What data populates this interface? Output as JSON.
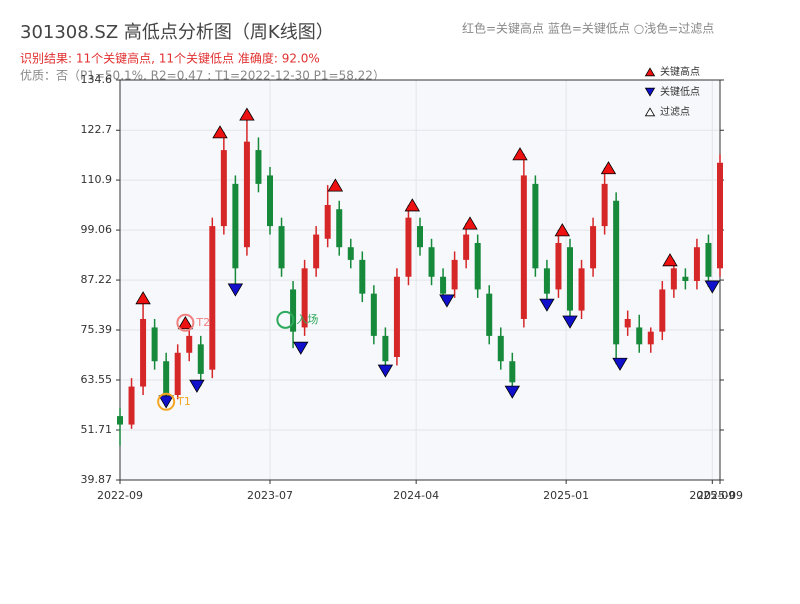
{
  "chart_data": {
    "type": "candlestick",
    "title": "301308.SZ 高低点分析图（周K线图）",
    "subtitle": "红色=关键高点    蓝色=关键低点   ○浅色=过滤点",
    "result_text": "识别结果: 11个关键高点, 11个关键低点   准确度: 92.0%",
    "quality_text": "优质：否（P1=50.1%, R2=0.47 ; T1=2022-12-30 P1=58.22）",
    "up_color": "#d62728",
    "down_color": "#16893a",
    "grid": true,
    "xlim": [
      0,
      156
    ],
    "xticks": [
      {
        "value": 0,
        "label": "2022-09"
      },
      {
        "value": 39,
        "label": "2023-07"
      },
      {
        "value": 77,
        "label": "2024-04"
      },
      {
        "value": 116,
        "label": "2025-01"
      },
      {
        "value": 154,
        "label": "2025-09"
      },
      {
        "value": 156,
        "label": "2025-09"
      }
    ],
    "ylim": [
      39.87,
      134.6
    ],
    "yticks": [
      39.87,
      51.71,
      63.55,
      75.39,
      87.22,
      99.06,
      110.9,
      122.7,
      134.6
    ],
    "x": [
      0,
      3,
      6,
      9,
      12,
      15,
      18,
      21,
      24,
      27,
      30,
      33,
      36,
      39,
      42,
      45,
      48,
      51,
      54,
      57,
      60,
      63,
      66,
      69,
      72,
      75,
      78,
      81,
      84,
      87,
      90,
      93,
      96,
      99,
      102,
      105,
      108,
      111,
      114,
      117,
      120,
      123,
      126,
      129,
      132,
      135,
      138,
      141,
      144,
      147,
      150,
      153,
      156
    ],
    "open": [
      55,
      53,
      62,
      76,
      68,
      60,
      70,
      72,
      66,
      100,
      110,
      95,
      118,
      112,
      100,
      85,
      76,
      90,
      97,
      104,
      95,
      92,
      84,
      74,
      69,
      88,
      100,
      95,
      88,
      85,
      92,
      96,
      84,
      74,
      68,
      78,
      110,
      90,
      85,
      95,
      80,
      90,
      100,
      106,
      76,
      76,
      72,
      75,
      85,
      88,
      87,
      96,
      90
    ],
    "close": [
      53,
      62,
      78,
      68,
      60,
      70,
      74,
      65,
      100,
      118,
      90,
      120,
      110,
      100,
      90,
      75,
      90,
      98,
      105,
      95,
      92,
      84,
      74,
      68,
      88,
      102,
      95,
      88,
      84,
      92,
      98,
      85,
      74,
      68,
      63,
      112,
      90,
      84,
      96,
      80,
      90,
      100,
      110,
      72,
      78,
      72,
      75,
      85,
      90,
      87,
      95,
      88,
      115
    ],
    "high": [
      57,
      64,
      83,
      78,
      70,
      72,
      77.1,
      74,
      102,
      122.3,
      112,
      126.5,
      121,
      114,
      102,
      87,
      92,
      100,
      109.7,
      106,
      97,
      94,
      86,
      76,
      90,
      105,
      102,
      97,
      90,
      94,
      100.7,
      98,
      86,
      76,
      70,
      117.1,
      112,
      92,
      99.1,
      97,
      92,
      102,
      113.8,
      108,
      80,
      79,
      76,
      87,
      92,
      90,
      97,
      98,
      117
    ],
    "low": [
      48,
      52,
      60,
      66,
      58.4,
      59,
      68,
      62.1,
      64,
      98,
      84.9,
      93,
      108,
      98,
      88,
      71.1,
      74,
      88,
      95,
      93,
      90,
      82,
      72,
      65.7,
      67,
      86,
      93,
      86,
      82.3,
      83,
      90,
      83,
      72,
      66,
      60.7,
      76,
      88,
      81.3,
      83,
      77.3,
      78,
      88,
      98,
      67.3,
      74,
      70,
      70,
      73,
      83,
      85,
      85,
      85.6,
      88
    ],
    "series": [
      {
        "name": "关键高点",
        "color": "#ee1111",
        "marker": "up",
        "x": [
          6,
          17,
          26,
          33,
          56,
          76,
          91,
          104,
          115,
          127,
          143
        ],
        "values": [
          83.0,
          77.1,
          122.3,
          126.5,
          109.7,
          105.0,
          100.7,
          117.1,
          99.1,
          113.8,
          92.0
        ]
      },
      {
        "name": "关键低点",
        "color": "#1111cc",
        "marker": "down",
        "x": [
          12,
          20,
          30,
          47,
          69,
          85,
          102,
          111,
          117,
          130,
          154
        ],
        "values": [
          58.4,
          62.1,
          84.9,
          71.1,
          65.7,
          82.3,
          60.7,
          81.3,
          77.3,
          67.3,
          85.6
        ]
      },
      {
        "name": "过滤点",
        "color": "#ffffff",
        "marker": "up",
        "x": [],
        "values": []
      }
    ],
    "annotations": [
      {
        "label": "T1",
        "x": 12,
        "value": 58.4,
        "color": "#f5a623"
      },
      {
        "label": "T2",
        "x": 17,
        "value": 77.1,
        "color": "#f08080"
      },
      {
        "label": "入场",
        "x": 43,
        "value": 77.8,
        "color": "#2eaa5c"
      }
    ]
  }
}
